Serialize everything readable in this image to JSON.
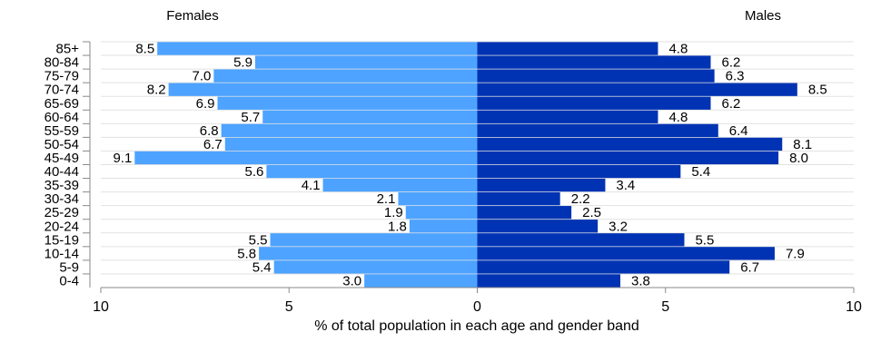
{
  "chart_data": {
    "type": "bar",
    "orientation": "horizontal",
    "title": "",
    "xlabel": "% of total population in each age and gender band",
    "ylabel": "",
    "xlim": [
      -10,
      10
    ],
    "x_ticks": [
      -10,
      -5,
      0,
      5,
      10
    ],
    "x_tick_labels": [
      "10",
      "5",
      "0",
      "5",
      "10"
    ],
    "grid": true,
    "categories": [
      "85+",
      "80-84",
      "75-79",
      "70-74",
      "65-69",
      "60-64",
      "55-59",
      "50-54",
      "45-49",
      "40-44",
      "35-39",
      "30-34",
      "25-29",
      "20-24",
      "15-19",
      "10-14",
      "5-9",
      "0-4"
    ],
    "series": [
      {
        "name": "Females",
        "side": "left",
        "color": "#4da3ff",
        "values": [
          8.5,
          5.9,
          7.0,
          8.2,
          6.9,
          5.7,
          6.8,
          6.7,
          9.1,
          5.6,
          4.1,
          2.1,
          1.9,
          1.8,
          5.5,
          5.8,
          5.4,
          3.0
        ],
        "labels": [
          "8.5",
          "5.9",
          "7.0",
          "8.2",
          "6.9",
          "5.7",
          "6.8",
          "6.7",
          "9.1",
          "5.6",
          "4.1",
          "2.1",
          "1.9",
          "1.8",
          "5.5",
          "5.8",
          "5.4",
          "3.0"
        ]
      },
      {
        "name": "Males",
        "side": "right",
        "color": "#0033b3",
        "values": [
          4.8,
          6.2,
          6.3,
          8.5,
          6.2,
          4.8,
          6.4,
          8.1,
          8.0,
          5.4,
          3.4,
          2.2,
          2.5,
          3.2,
          5.5,
          7.9,
          6.7,
          3.8
        ],
        "labels": [
          "4.8",
          "6.2",
          "6.3",
          "8.5",
          "6.2",
          "4.8",
          "6.4",
          "8.1",
          "8.0",
          "5.4",
          "3.4",
          "2.2",
          "2.5",
          "3.2",
          "5.5",
          "7.9",
          "6.7",
          "3.8"
        ]
      }
    ]
  }
}
